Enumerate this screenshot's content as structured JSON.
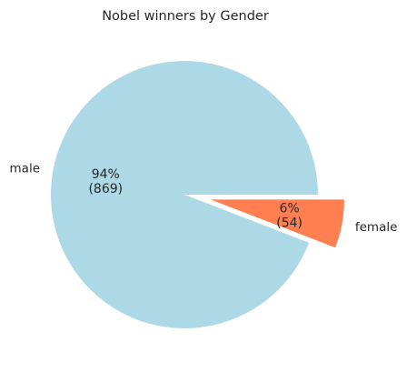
{
  "chart_data": {
    "type": "pie",
    "title": "Nobel winners by Gender",
    "slices": [
      {
        "label": "male",
        "value": 869,
        "percent_label": "94%",
        "count_label": "(869)",
        "color": "#add8e6",
        "explode": 0
      },
      {
        "label": "female",
        "value": 54,
        "percent_label": "6%",
        "count_label": "(54)",
        "color": "#ff7f50",
        "explode": 0.2
      }
    ],
    "start_angle": 0,
    "direction": "counterclockwise",
    "legend": "none"
  }
}
